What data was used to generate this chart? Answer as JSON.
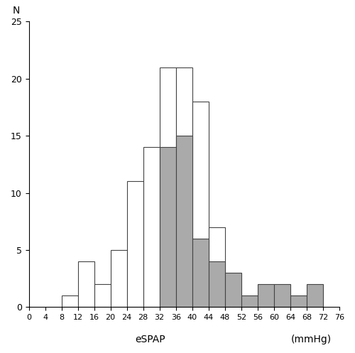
{
  "bar_data": [
    [
      8,
      1,
      "white"
    ],
    [
      12,
      4,
      "white"
    ],
    [
      16,
      2,
      "white"
    ],
    [
      20,
      5,
      "white"
    ],
    [
      24,
      11,
      "white"
    ],
    [
      28,
      14,
      "white"
    ],
    [
      32,
      21,
      "white"
    ],
    [
      36,
      21,
      "white"
    ],
    [
      40,
      18,
      "white"
    ],
    [
      44,
      7,
      "white"
    ],
    [
      32,
      14,
      "#aaaaaa"
    ],
    [
      36,
      15,
      "#aaaaaa"
    ],
    [
      40,
      6,
      "#aaaaaa"
    ],
    [
      44,
      4,
      "#aaaaaa"
    ],
    [
      48,
      3,
      "#aaaaaa"
    ],
    [
      52,
      1,
      "#aaaaaa"
    ],
    [
      56,
      2,
      "#aaaaaa"
    ],
    [
      60,
      2,
      "#aaaaaa"
    ],
    [
      64,
      1,
      "#aaaaaa"
    ],
    [
      68,
      2,
      "#aaaaaa"
    ]
  ],
  "ylabel": "N",
  "xlabel_left": "eSPAP",
  "xlabel_right": "(mmHg)",
  "ylim": [
    0,
    25
  ],
  "xlim": [
    0,
    76
  ],
  "yticks": [
    0,
    5,
    10,
    15,
    20,
    25
  ],
  "xticks": [
    0,
    4,
    8,
    12,
    16,
    20,
    24,
    28,
    32,
    36,
    40,
    44,
    48,
    52,
    56,
    60,
    64,
    68,
    72,
    76
  ]
}
